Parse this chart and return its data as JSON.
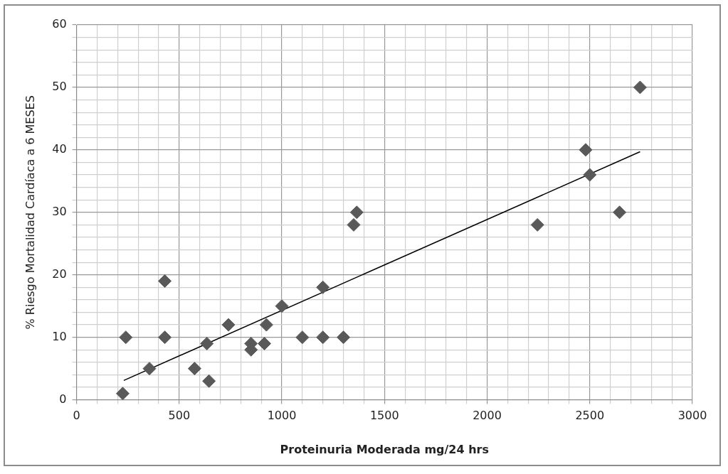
{
  "chart_data": {
    "type": "scatter",
    "xlabel": "Proteinuria Moderada mg/24 hrs",
    "ylabel": "% Riesgo Mortalidad Cardíaca a 6 MESES",
    "series": [
      {
        "type": "scatter",
        "color": "#595959",
        "x": [
          225,
          240,
          355,
          430,
          430,
          575,
          635,
          645,
          740,
          850,
          850,
          915,
          925,
          1000,
          1100,
          1200,
          1200,
          1300,
          1350,
          1365,
          2245,
          2480,
          2500,
          2645,
          2745
        ],
        "values": [
          1,
          10,
          5,
          19,
          10,
          5,
          9,
          3,
          12,
          9,
          8,
          9,
          12,
          15,
          10,
          10,
          18,
          10,
          28,
          30,
          28,
          40,
          36,
          30,
          50
        ]
      },
      {
        "type": "line",
        "color": "#000000",
        "marker": "none",
        "x": [
          230,
          2745
        ],
        "values": [
          3.1,
          39.7
        ]
      }
    ],
    "xlim": [
      0,
      3000
    ],
    "xticks": [
      0,
      {
        "value": 100,
        "label": null
      },
      {
        "value": 200,
        "label": null
      },
      {
        "value": 300,
        "label": null
      },
      {
        "value": 400,
        "label": null
      },
      500,
      {
        "value": 600,
        "label": null
      },
      {
        "value": 700,
        "label": null
      },
      {
        "value": 800,
        "label": null
      },
      {
        "value": 900,
        "label": null
      },
      1000,
      {
        "value": 1100,
        "label": null
      },
      {
        "value": 1200,
        "label": null
      },
      {
        "value": 1300,
        "label": null
      },
      {
        "value": 1400,
        "label": null
      },
      1500,
      {
        "value": 1600,
        "label": null
      },
      {
        "value": 1700,
        "label": null
      },
      {
        "value": 1800,
        "label": null
      },
      {
        "value": 1900,
        "label": null
      },
      2000,
      {
        "value": 2100,
        "label": null
      },
      {
        "value": 2200,
        "label": null
      },
      {
        "value": 2300,
        "label": null
      },
      {
        "value": 2400,
        "label": null
      },
      2500,
      {
        "value": 2600,
        "label": null
      },
      {
        "value": 2700,
        "label": null
      },
      {
        "value": 2800,
        "label": null
      },
      {
        "value": 2900,
        "label": null
      },
      3000
    ],
    "ylim": [
      0,
      60
    ],
    "yticks": [
      0,
      {
        "value": 2,
        "label": null
      },
      {
        "value": 4,
        "label": null
      },
      {
        "value": 6,
        "label": null
      },
      {
        "value": 8,
        "label": null
      },
      10,
      {
        "value": 12,
        "label": null
      },
      {
        "value": 14,
        "label": null
      },
      {
        "value": 16,
        "label": null
      },
      {
        "value": 18,
        "label": null
      },
      20,
      {
        "value": 22,
        "label": null
      },
      {
        "value": 24,
        "label": null
      },
      {
        "value": 26,
        "label": null
      },
      {
        "value": 28,
        "label": null
      },
      30,
      {
        "value": 32,
        "label": null
      },
      {
        "value": 34,
        "label": null
      },
      {
        "value": 36,
        "label": null
      },
      {
        "value": 38,
        "label": null
      },
      40,
      {
        "value": 42,
        "label": null
      },
      {
        "value": 44,
        "label": null
      },
      {
        "value": 46,
        "label": null
      },
      {
        "value": 48,
        "label": null
      },
      50,
      {
        "value": 52,
        "label": null
      },
      {
        "value": 54,
        "label": null
      },
      {
        "value": 56,
        "label": null
      },
      {
        "value": 58,
        "label": null
      },
      60
    ],
    "grid": true,
    "marker": "diamond",
    "legend": false
  }
}
